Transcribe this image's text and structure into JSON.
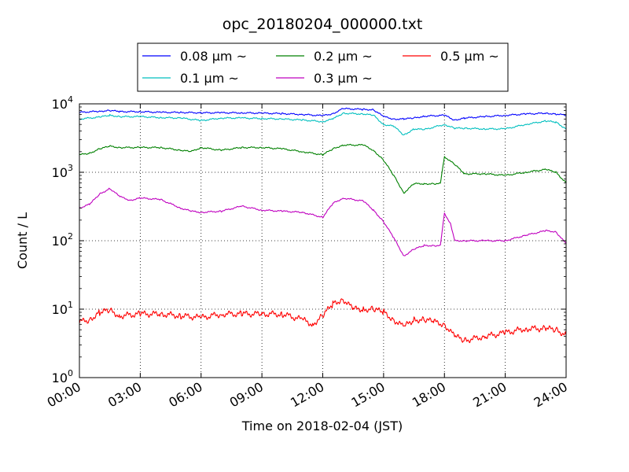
{
  "chart_data": {
    "type": "line",
    "title": "opc_20180204_000000.txt",
    "xlabel": "Time on 2018-02-04 (JST)",
    "ylabel": "Count / L",
    "xlim": [
      "00:00",
      "24:00"
    ],
    "ylim": [
      1,
      10000
    ],
    "y_scale": "log",
    "grid": true,
    "legend_location": "top",
    "x_tick_labels": [
      "00:00",
      "03:00",
      "06:00",
      "09:00",
      "12:00",
      "15:00",
      "18:00",
      "21:00",
      "24:00"
    ],
    "y_tick_labels": [
      {
        "base": "10",
        "exp": "0"
      },
      {
        "base": "10",
        "exp": "1"
      },
      {
        "base": "10",
        "exp": "2"
      },
      {
        "base": "10",
        "exp": "3"
      },
      {
        "base": "10",
        "exp": "4"
      }
    ],
    "legend_suffix": "~",
    "series": [
      {
        "name": "0.08 μm",
        "color": "#0000ff",
        "x": [
          0,
          1,
          1.5,
          2,
          3,
          4,
          5,
          6,
          7,
          8,
          9,
          10,
          11,
          12,
          12.5,
          13,
          14,
          14.5,
          15,
          15.5,
          16,
          16.5,
          17,
          18,
          18.5,
          19,
          20,
          21,
          22,
          23,
          23.5,
          24
        ],
        "y": [
          7500,
          7800,
          8000,
          7700,
          7700,
          7500,
          7500,
          7400,
          7400,
          7400,
          7300,
          7200,
          7000,
          6700,
          7200,
          8500,
          8300,
          8200,
          6500,
          6000,
          6000,
          6200,
          6600,
          6800,
          5800,
          6200,
          6500,
          6800,
          7100,
          7300,
          7100,
          6800
        ]
      },
      {
        "name": "0.1 μm",
        "color": "#00bfbf",
        "x": [
          0,
          1,
          1.5,
          2,
          3,
          4,
          5,
          6,
          7,
          8,
          9,
          10,
          11,
          12,
          12.5,
          13,
          14,
          14.5,
          15,
          15.5,
          16,
          16.5,
          17,
          18,
          18.5,
          19,
          20,
          21,
          22,
          23,
          23.5,
          24
        ],
        "y": [
          6000,
          6400,
          6800,
          6500,
          6500,
          6300,
          6200,
          5700,
          6200,
          6200,
          6100,
          6000,
          5800,
          5500,
          6000,
          7300,
          7100,
          6800,
          5000,
          4700,
          3500,
          4300,
          4200,
          5000,
          4400,
          4400,
          4300,
          4300,
          5000,
          5600,
          5400,
          4300
        ]
      },
      {
        "name": "0.2 μm",
        "color": "#008000",
        "x": [
          0,
          0.5,
          1,
          1.5,
          2,
          3,
          4,
          5,
          5.5,
          6,
          7,
          8,
          9,
          10,
          11,
          12,
          12.5,
          13,
          14,
          14.5,
          15,
          15.5,
          16,
          16.5,
          17,
          17.5,
          17.8,
          18,
          18.5,
          19,
          20,
          21,
          22,
          23,
          23.5,
          24
        ],
        "y": [
          1800,
          1900,
          2200,
          2400,
          2300,
          2300,
          2300,
          2100,
          2000,
          2300,
          2100,
          2300,
          2300,
          2200,
          2000,
          1800,
          2200,
          2500,
          2500,
          2100,
          1500,
          900,
          500,
          680,
          680,
          680,
          680,
          1700,
          1300,
          950,
          950,
          900,
          1000,
          1100,
          1000,
          700
        ]
      },
      {
        "name": "0.3 μm",
        "color": "#bf00bf",
        "x": [
          0,
          0.5,
          1,
          1.5,
          2,
          2.5,
          3,
          4,
          5,
          5.5,
          6,
          7,
          8,
          9,
          10,
          11,
          12,
          12.5,
          13,
          14,
          14.5,
          15,
          15.5,
          16,
          16.5,
          17,
          17.5,
          17.8,
          18,
          18.3,
          18.5,
          19,
          20,
          21,
          22,
          23,
          23.5,
          24
        ],
        "y": [
          300,
          340,
          480,
          580,
          440,
          390,
          420,
          400,
          300,
          270,
          260,
          270,
          320,
          280,
          270,
          260,
          220,
          350,
          420,
          380,
          280,
          190,
          110,
          60,
          75,
          85,
          85,
          85,
          250,
          180,
          100,
          100,
          100,
          100,
          120,
          140,
          135,
          90
        ]
      },
      {
        "name": "0.5 μm",
        "color": "#ff0000",
        "x": [
          0,
          0.5,
          1,
          1.5,
          2,
          3,
          4,
          5,
          6,
          7,
          8,
          9,
          10,
          11,
          11.5,
          12,
          12.5,
          13,
          13.5,
          14,
          14.5,
          15,
          15.5,
          16,
          16.5,
          17,
          17.5,
          18,
          18.5,
          19,
          20,
          21,
          22,
          23,
          23.5,
          24
        ],
        "y": [
          6.5,
          7,
          9,
          9.5,
          8,
          8.5,
          8.5,
          8,
          7.5,
          8.5,
          8.5,
          8.5,
          8.5,
          7,
          6,
          8,
          12,
          14,
          10,
          10,
          10,
          9,
          7,
          5.5,
          7,
          7,
          6.5,
          6,
          4,
          3.5,
          4,
          4.5,
          5.2,
          5.2,
          5.0,
          4.2
        ]
      }
    ]
  }
}
